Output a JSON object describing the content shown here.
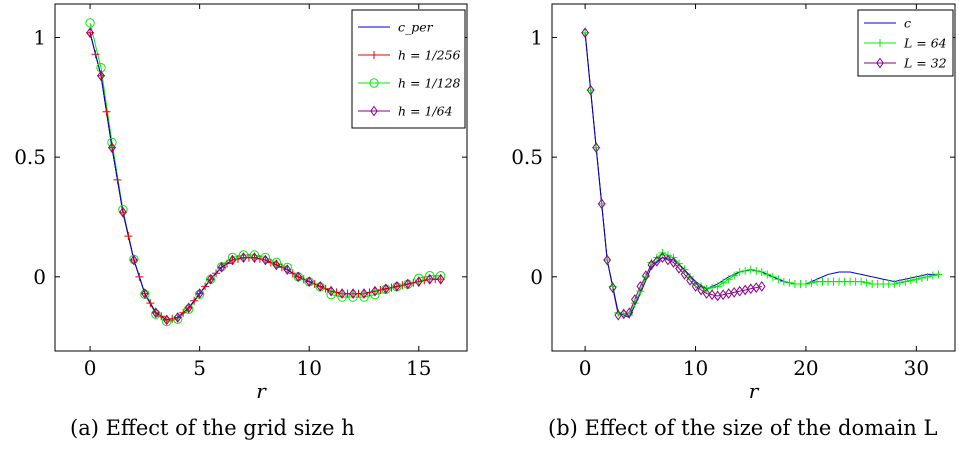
{
  "chart_data": [
    {
      "type": "line",
      "caption": "(a) Effect of the grid size h",
      "xlabel": "r",
      "ylabel": "",
      "xlim": [
        -1.6,
        17.2
      ],
      "ylim": [
        -0.31,
        1.14
      ],
      "xticks": [
        0,
        5,
        10,
        15
      ],
      "yticks": [
        0,
        0.5,
        1
      ],
      "xtick_labels": [
        "0",
        "5",
        "10",
        "15"
      ],
      "ytick_labels": [
        "0",
        "0.5",
        "1"
      ],
      "grid": false,
      "legend_position": "top-right",
      "series": [
        {
          "name": "c_per",
          "color": "#0000cc",
          "marker": "none",
          "x": [],
          "y": []
        },
        {
          "name": "h = 1/256",
          "color": "#ee0000",
          "marker": "plus",
          "x": [],
          "y": []
        },
        {
          "name": "h = 1/128",
          "color": "#00ee00",
          "marker": "circle",
          "x": [],
          "y": []
        },
        {
          "name": "h = 1/64",
          "color": "#8b008b",
          "marker": "diamond",
          "x": [],
          "y": []
        }
      ],
      "curve_samples": {
        "x": [
          0,
          0.5,
          1,
          1.5,
          2,
          2.5,
          3,
          3.5,
          4,
          4.5,
          5,
          5.5,
          6,
          6.5,
          7,
          7.5,
          8,
          8.5,
          9,
          9.5,
          10,
          10.5,
          11,
          11.5,
          12,
          12.5,
          13,
          13.5,
          14,
          14.5,
          15,
          15.5,
          16
        ],
        "y": [
          1.02,
          0.84,
          0.54,
          0.27,
          0.07,
          -0.07,
          -0.15,
          -0.18,
          -0.17,
          -0.13,
          -0.07,
          -0.01,
          0.04,
          0.07,
          0.08,
          0.08,
          0.07,
          0.05,
          0.03,
          0.0,
          -0.02,
          -0.04,
          -0.06,
          -0.07,
          -0.07,
          -0.07,
          -0.06,
          -0.05,
          -0.04,
          -0.03,
          -0.02,
          -0.01,
          -0.01
        ]
      }
    },
    {
      "type": "line",
      "caption": "(b) Effect of the size of the domain L",
      "xlabel": "r",
      "ylabel": "",
      "xlim": [
        -3.0,
        33.5
      ],
      "ylim": [
        -0.31,
        1.14
      ],
      "xticks": [
        0,
        10,
        20,
        30
      ],
      "yticks": [
        0,
        0.5,
        1
      ],
      "xtick_labels": [
        "0",
        "10",
        "20",
        "30"
      ],
      "ytick_labels": [
        "0",
        "0.5",
        "1"
      ],
      "grid": false,
      "legend_position": "top-right",
      "series": [
        {
          "name": "c",
          "color": "#0000cc",
          "marker": "none"
        },
        {
          "name": "L = 64",
          "color": "#00ee00",
          "marker": "plus"
        },
        {
          "name": "L = 32",
          "color": "#8b008b",
          "marker": "diamond"
        }
      ],
      "c_samples": {
        "x": [
          0,
          1,
          2,
          3,
          4,
          5,
          6,
          7,
          8,
          9,
          10,
          11,
          12,
          13,
          14,
          15,
          16,
          17,
          18,
          19,
          20,
          21,
          22,
          23,
          24,
          25,
          26,
          27,
          28,
          29,
          30,
          31,
          32
        ],
        "y": [
          1.02,
          0.54,
          0.07,
          -0.15,
          -0.17,
          -0.07,
          0.04,
          0.08,
          0.07,
          0.03,
          -0.02,
          -0.05,
          -0.03,
          0.0,
          0.02,
          0.03,
          0.02,
          0.0,
          -0.02,
          -0.03,
          -0.03,
          -0.01,
          0.01,
          0.02,
          0.02,
          0.01,
          0.0,
          -0.01,
          -0.02,
          -0.01,
          0.0,
          0.01,
          0.01
        ]
      },
      "L64_samples": {
        "x": [
          0,
          1,
          2,
          3,
          4,
          5,
          6,
          7,
          8,
          9,
          10,
          11,
          12,
          13,
          14,
          15,
          16,
          17,
          18,
          19,
          20,
          21,
          22,
          23,
          24,
          25,
          26,
          27,
          28,
          29,
          30,
          31,
          32
        ],
        "y": [
          1.02,
          0.54,
          0.07,
          -0.15,
          -0.16,
          -0.06,
          0.06,
          0.1,
          0.08,
          0.03,
          -0.03,
          -0.05,
          -0.04,
          -0.01,
          0.02,
          0.03,
          0.02,
          0.0,
          -0.02,
          -0.03,
          -0.03,
          -0.02,
          -0.02,
          -0.02,
          -0.02,
          -0.02,
          -0.03,
          -0.03,
          -0.03,
          -0.02,
          -0.01,
          0.0,
          0.01
        ]
      },
      "L32_samples": {
        "x": [
          0,
          1,
          2,
          3,
          4,
          5,
          6,
          7,
          8,
          9,
          10,
          11,
          12,
          13,
          14,
          15,
          16
        ],
        "y": [
          1.02,
          0.54,
          0.07,
          -0.16,
          -0.15,
          -0.04,
          0.05,
          0.08,
          0.06,
          0.01,
          -0.04,
          -0.07,
          -0.08,
          -0.07,
          -0.06,
          -0.05,
          -0.04
        ]
      }
    }
  ],
  "captions": {
    "a": "(a) Effect of the grid size h",
    "b": "(b) Effect of the size of the domain L"
  }
}
